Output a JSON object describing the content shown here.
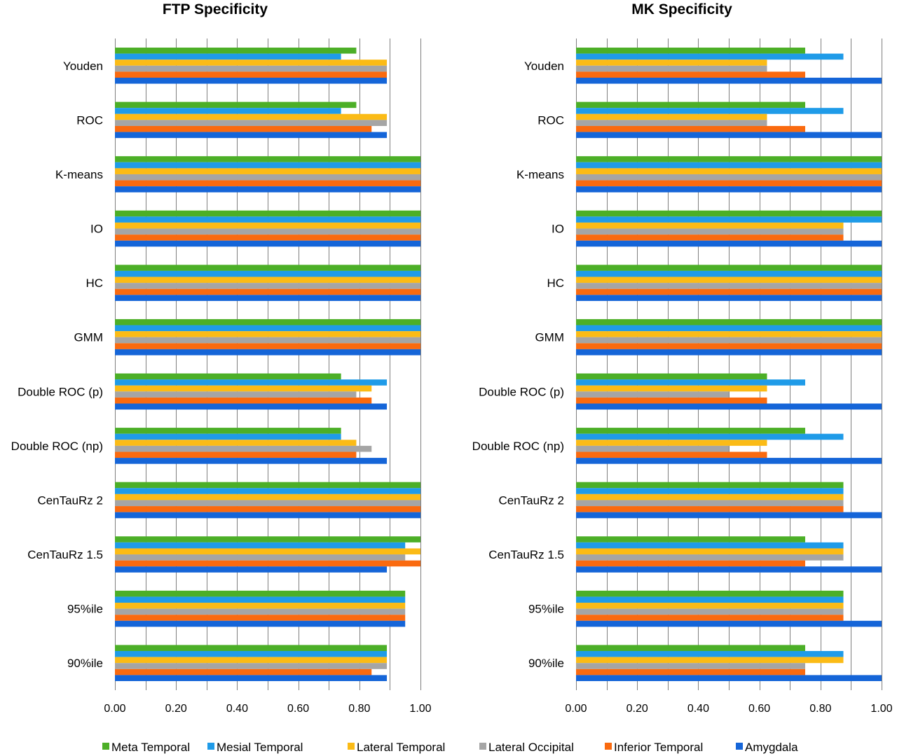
{
  "chart_data": [
    {
      "type": "bar",
      "orientation": "horizontal",
      "title": "FTP Specificity",
      "xlim": [
        0,
        1
      ],
      "x_ticks": [
        "0.00",
        "0.20",
        "0.40",
        "0.60",
        "0.80",
        "1.00"
      ],
      "grid": true,
      "categories": [
        "Youden",
        "ROC",
        "K-means",
        "IO",
        "HC",
        "GMM",
        "Double ROC (p)",
        "Double ROC (np)",
        "CenTauRz 2",
        "CenTauRz 1.5",
        "95%ile",
        "90%ile"
      ],
      "series": [
        {
          "name": "Meta Temporal",
          "color": "#4caf27",
          "values": [
            0.79,
            0.79,
            1.0,
            1.0,
            1.0,
            1.0,
            0.74,
            0.74,
            1.0,
            1.0,
            0.95,
            0.89
          ]
        },
        {
          "name": "Mesial Temporal",
          "color": "#1f9be8",
          "values": [
            0.74,
            0.74,
            1.0,
            1.0,
            1.0,
            1.0,
            0.89,
            0.74,
            1.0,
            0.95,
            0.95,
            0.89
          ]
        },
        {
          "name": "Lateral Temporal",
          "color": "#fbbb16",
          "values": [
            0.89,
            0.89,
            1.0,
            1.0,
            1.0,
            1.0,
            0.84,
            0.79,
            1.0,
            1.0,
            0.95,
            0.89
          ]
        },
        {
          "name": "Lateral Occipital",
          "color": "#a5a5a5",
          "values": [
            0.89,
            0.89,
            1.0,
            1.0,
            1.0,
            1.0,
            0.79,
            0.84,
            1.0,
            0.95,
            0.95,
            0.89
          ]
        },
        {
          "name": "Inferior Temporal",
          "color": "#fa6a0f",
          "values": [
            0.89,
            0.84,
            1.0,
            1.0,
            1.0,
            1.0,
            0.84,
            0.79,
            1.0,
            1.0,
            0.95,
            0.84
          ]
        },
        {
          "name": "Amygdala",
          "color": "#1565d8",
          "values": [
            0.89,
            0.89,
            1.0,
            1.0,
            1.0,
            1.0,
            0.89,
            0.89,
            1.0,
            0.89,
            0.95,
            0.89
          ]
        }
      ]
    },
    {
      "type": "bar",
      "orientation": "horizontal",
      "title": "MK Specificity",
      "xlim": [
        0,
        1
      ],
      "x_ticks": [
        "0.00",
        "0.20",
        "0.40",
        "0.60",
        "0.80",
        "1.00"
      ],
      "grid": true,
      "categories": [
        "Youden",
        "ROC",
        "K-means",
        "IO",
        "HC",
        "GMM",
        "Double ROC (p)",
        "Double ROC (np)",
        "CenTauRz 2",
        "CenTauRz 1.5",
        "95%ile",
        "90%ile"
      ],
      "series": [
        {
          "name": "Meta Temporal",
          "color": "#4caf27",
          "values": [
            0.75,
            0.75,
            1.0,
            1.0,
            1.0,
            1.0,
            0.625,
            0.75,
            0.875,
            0.75,
            0.875,
            0.75
          ]
        },
        {
          "name": "Mesial Temporal",
          "color": "#1f9be8",
          "values": [
            0.875,
            0.875,
            1.0,
            1.0,
            1.0,
            1.0,
            0.75,
            0.875,
            0.875,
            0.875,
            0.875,
            0.875
          ]
        },
        {
          "name": "Lateral Temporal",
          "color": "#fbbb16",
          "values": [
            0.625,
            0.625,
            1.0,
            0.875,
            1.0,
            1.0,
            0.625,
            0.625,
            0.875,
            0.875,
            0.875,
            0.875
          ]
        },
        {
          "name": "Lateral Occipital",
          "color": "#a5a5a5",
          "values": [
            0.625,
            0.625,
            1.0,
            0.875,
            1.0,
            1.0,
            0.5,
            0.5,
            0.875,
            0.875,
            0.875,
            0.75
          ]
        },
        {
          "name": "Inferior Temporal",
          "color": "#fa6a0f",
          "values": [
            0.75,
            0.75,
            1.0,
            0.875,
            1.0,
            1.0,
            0.625,
            0.625,
            0.875,
            0.75,
            0.875,
            0.75
          ]
        },
        {
          "name": "Amygdala",
          "color": "#1565d8",
          "values": [
            1.0,
            1.0,
            1.0,
            1.0,
            1.0,
            1.0,
            1.0,
            1.0,
            1.0,
            1.0,
            1.0,
            1.0
          ]
        }
      ]
    }
  ],
  "legend": {
    "placement": "bottom",
    "items": [
      {
        "label": "Meta Temporal",
        "color": "#4caf27"
      },
      {
        "label": "Mesial Temporal",
        "color": "#1f9be8"
      },
      {
        "label": "Lateral Temporal",
        "color": "#fbbb16"
      },
      {
        "label": "Lateral Occipital",
        "color": "#a5a5a5"
      },
      {
        "label": "Inferior Temporal",
        "color": "#fa6a0f"
      },
      {
        "label": "Amygdala",
        "color": "#1565d8"
      }
    ]
  }
}
